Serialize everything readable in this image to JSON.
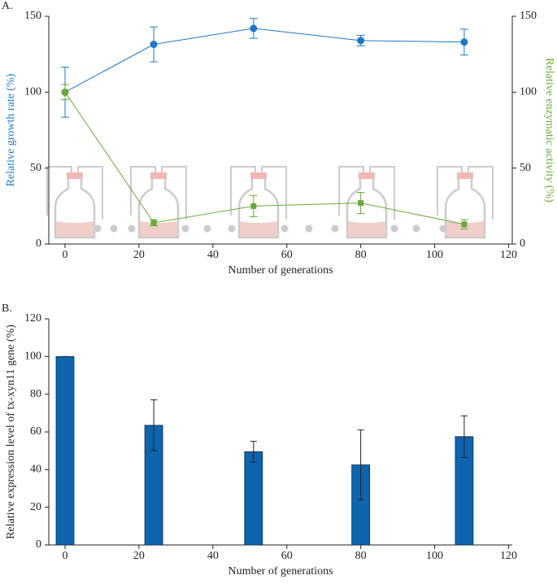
{
  "chart_data": [
    {
      "type": "line",
      "panel_label": "A.",
      "xlabel": "Number of generations",
      "ylabel": "Relative growth rate (%)",
      "y2label": "Relative enzymatic activity (%)",
      "x": [
        0,
        24,
        51,
        80,
        108
      ],
      "xlim": [
        -4.4,
        121
      ],
      "xticks": [
        0,
        20,
        40,
        60,
        80,
        100,
        120
      ],
      "ylim": [
        0,
        150
      ],
      "yticks": [
        0,
        50,
        100,
        150
      ],
      "y2lim": [
        0,
        150
      ],
      "y2ticks": [
        0,
        50,
        100,
        150
      ],
      "ylabel_color": "#1f78c1",
      "y2label_color": "#6aa83a",
      "series": [
        {
          "color": "#1f78c1",
          "values": [
            100,
            131.5,
            142,
            134,
            133
          ],
          "errors": [
            16.5,
            11.5,
            6.5,
            3.5,
            8.5
          ]
        },
        {
          "color": "#6aa83a",
          "axis": "y2",
          "values": [
            100,
            14,
            25,
            27,
            13
          ],
          "errors": [
            5,
            2,
            7,
            7,
            3
          ]
        }
      ]
    },
    {
      "type": "bar",
      "panel_label": "B.",
      "xlabel": "Number of generations",
      "ylabel": "Relative expression level of tx-xyn11 gene (%)",
      "x": [
        0,
        24,
        51,
        80,
        108
      ],
      "values": [
        100,
        63.5,
        49.5,
        42.5,
        57.5
      ],
      "errors": [
        0,
        13.5,
        5.5,
        18.5,
        11
      ],
      "color": "#0e64ad",
      "xlim": [
        -4.4,
        121
      ],
      "xticks": [
        0,
        20,
        40,
        60,
        80,
        100,
        120
      ],
      "ylim": [
        0,
        120
      ],
      "yticks": [
        0,
        20,
        40,
        60,
        80,
        100,
        120
      ]
    }
  ]
}
